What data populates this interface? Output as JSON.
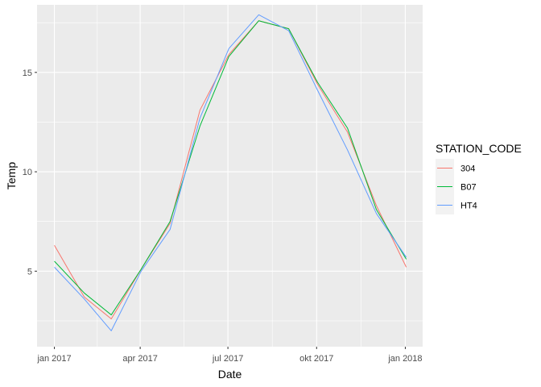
{
  "chart_data": {
    "type": "line",
    "xlabel": "Date",
    "ylabel": "Temp",
    "x_ticks": [
      {
        "label": "jan 2017",
        "value": 0
      },
      {
        "label": "apr 2017",
        "value": 89
      },
      {
        "label": "jul 2017",
        "value": 180
      },
      {
        "label": "okt 2017",
        "value": 272
      },
      {
        "label": "jan 2018",
        "value": 364
      }
    ],
    "y_ticks": [
      5,
      10,
      15
    ],
    "xlim": [
      -18,
      382
    ],
    "ylim": [
      1.2,
      18.4
    ],
    "legend_title": "STATION_CODE",
    "x_days": [
      0,
      31,
      59,
      90,
      120,
      151,
      181,
      212,
      243,
      273,
      304,
      334,
      365
    ],
    "series": [
      {
        "name": "304",
        "color": "#F8766D",
        "values": [
          6.3,
          3.7,
          2.6,
          5.1,
          7.4,
          13.1,
          15.9,
          17.6,
          17.2,
          14.4,
          12.0,
          8.3,
          5.2
        ]
      },
      {
        "name": "B07",
        "color": "#00BA38",
        "values": [
          5.5,
          3.9,
          2.8,
          5.1,
          7.5,
          12.3,
          15.8,
          17.6,
          17.2,
          14.5,
          12.2,
          8.1,
          5.6
        ]
      },
      {
        "name": "HT4",
        "color": "#619CFF",
        "values": [
          5.2,
          3.6,
          2.0,
          5.0,
          7.1,
          12.7,
          16.2,
          17.9,
          17.1,
          14.1,
          11.1,
          7.9,
          5.7
        ]
      }
    ]
  }
}
